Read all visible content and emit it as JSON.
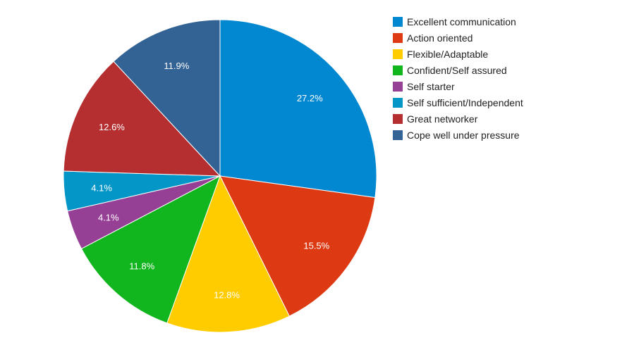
{
  "chart_data": {
    "type": "pie",
    "legend_position": "right",
    "categories": [
      "Excellent communication",
      "Action oriented",
      "Flexible/Adaptable",
      "Confident/Self assured",
      "Self starter",
      "Self sufficient/Independent",
      "Great networker",
      "Cope well under pressure"
    ],
    "values": [
      27.2,
      15.5,
      12.8,
      11.8,
      4.1,
      4.1,
      12.6,
      11.9
    ],
    "labels": [
      "27.2%",
      "15.5%",
      "12.8%",
      "11.8%",
      "4.1%",
      "4.1%",
      "12.6%",
      "11.9%"
    ],
    "colors": [
      "#0288d1",
      "#dd3912",
      "#ffcc00",
      "#11b51d",
      "#954095",
      "#0496c7",
      "#b52f31",
      "#336394"
    ]
  }
}
